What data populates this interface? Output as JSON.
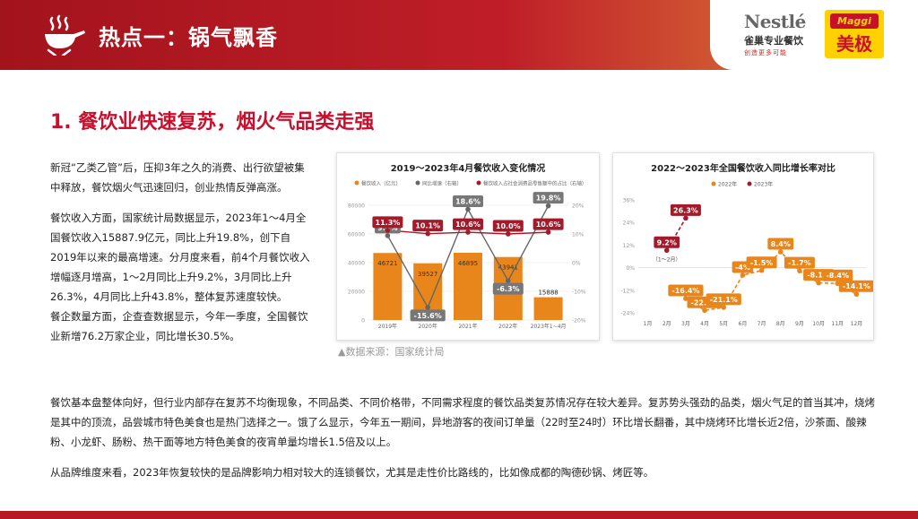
{
  "header": {
    "title": "热点一：锅气飘香",
    "wok_icon": "wok-flame-icon",
    "brand_nestle": "Nestlé",
    "brand_nestle_cn": "雀巢专业餐饮",
    "brand_nestle_slogan": "创造更多可能",
    "brand_maggi": "Maggi",
    "brand_maggi_cn": "美极"
  },
  "section": {
    "title": "1. 餐饮业快速复苏，烟火气品类走强"
  },
  "paragraphs": {
    "p1": "新冠“乙类乙管”后，压抑3年之久的消费、出行欲望被集中释放，餐饮烟火气迅速回归，创业热情反弹高涨。",
    "p2": "餐饮收入方面，国家统计局数据显示，2023年1～4月全国餐饮收入15887.9亿元，同比上升19.8%，创下自2019年以来的最高增速。分月度来看，前4个月餐饮收入增幅逐月增高，1～2月同比上升9.2%，3月同比上升26.3%，4月同比上升43.8%，整体复苏速度较快。",
    "p3": "餐企数量方面，企查查数据显示，今年一季度，全国餐饮业新增76.2万家企业，同比增长30.5%。",
    "w1": "餐饮基本盘整体向好，但行业内部存在复苏不均衡现象，不同品类、不同价格带，不同需求程度的餐饮品类复苏情况存在较大差异。复苏势头强劲的品类，烟火气足的首当其冲，烧烤是其中的顶流，品尝城市特色美食也是热门选择之一。饿了么显示，今年五一期间，异地游客的夜间订单量（22时至24时）环比增长翻番，其中烧烤环比增长近2倍，沙茶面、酸辣粉、小龙虾、肠粉、热干面等地方特色美食的夜宵单量均增长1.5倍及以上。",
    "w2": "从品牌维度来看，2023年恢复较快的是品牌影响力相对较大的连锁餐饮，尤其是走性价比路线的，比如像成都的陶德砂锅、烤匠等。"
  },
  "source_note": "▲数据来源：国家统计局",
  "colors": {
    "orange": "#e8861b",
    "red": "#a31a2a",
    "gray": "#666666"
  },
  "chart_data": [
    {
      "type": "bar",
      "title": "2019～2023年4月餐饮收入变化情况",
      "categories": [
        "2019年",
        "2020年",
        "2021年",
        "2022年",
        "2023年1~4月"
      ],
      "legend": [
        "餐饮收入（亿元）",
        "同比增速（右轴）",
        "餐饮收入占社会消费品零售额中的占比（右轴）"
      ],
      "series": [
        {
          "name": "餐饮收入（亿元）",
          "kind": "bar",
          "axis": "left",
          "values": [
            46721,
            39527,
            46895,
            43941,
            15888
          ]
        },
        {
          "name": "同比增速（右轴）",
          "kind": "line",
          "axis": "right",
          "values": [
            9.4,
            -15.6,
            18.6,
            -6.3,
            19.8
          ]
        },
        {
          "name": "餐饮收入占社会消费品零售额中的占比（右轴）",
          "kind": "line",
          "axis": "right",
          "values": [
            11.3,
            10.1,
            10.6,
            10.0,
            10.6
          ]
        }
      ],
      "bar_labels": [
        "46721",
        "39527",
        "46895",
        "43941",
        "15888"
      ],
      "growth_labels": [
        "9.4%",
        "-15.6%",
        "18.6%",
        "-6.3%",
        "19.8%"
      ],
      "share_labels": [
        "11.3%",
        "10.1%",
        "10.6%",
        "10.0%",
        "10.6%"
      ],
      "ylim_left": [
        0,
        80000
      ],
      "ylim_right": [
        -20,
        20
      ],
      "left_ticks": [
        "0",
        "20000",
        "40000",
        "60000",
        "80000"
      ],
      "right_ticks": [
        "-20%",
        "-10%",
        "0%",
        "10%",
        "20%"
      ],
      "legend_position": "top"
    },
    {
      "type": "line",
      "title": "2022～2023年全国餐饮收入同比增长率对比",
      "categories": [
        "1月",
        "2月",
        "3月",
        "4月",
        "5月",
        "6月",
        "7月",
        "8月",
        "9月",
        "10月",
        "11月",
        "12月"
      ],
      "series": [
        {
          "name": "2022年",
          "values": [
            null,
            null,
            -16.4,
            -22.7,
            -21.1,
            -4.0,
            -1.5,
            8.4,
            -1.7,
            -8.1,
            -8.4,
            -14.1
          ]
        },
        {
          "name": "2023年",
          "values": [
            null,
            9.2,
            26.3,
            null,
            null,
            null,
            null,
            null,
            null,
            null,
            null,
            null
          ]
        }
      ],
      "labels_2022": [
        "",
        "",
        "-16.4%",
        "-22.7%",
        "-21.1%",
        "-4%",
        "-1.5%",
        "8.4%",
        "-1.7%",
        "-8.1%",
        "-8.4%",
        "-14.1%"
      ],
      "labels_2023": [
        "",
        "9.2%",
        "26.3%",
        "",
        "",
        "",
        "",
        "",
        "",
        "",
        "",
        ""
      ],
      "annotation_2023": "（1～2月）",
      "ylim": [
        -24,
        36
      ],
      "y_ticks": [
        "-24%",
        "-12%",
        "0%",
        "12%",
        "24%",
        "36%"
      ],
      "legend_position": "top"
    }
  ]
}
